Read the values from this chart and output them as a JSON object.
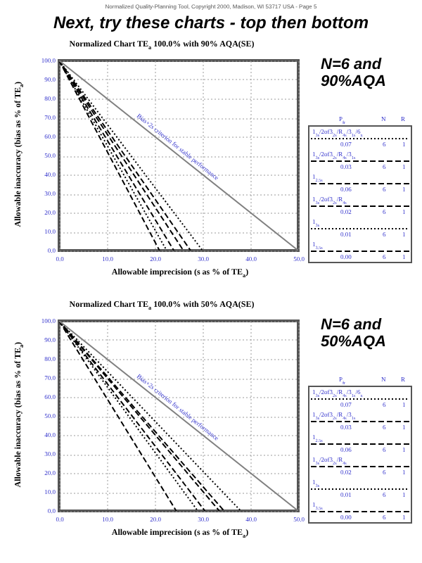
{
  "chart_data": [
    {
      "type": "line",
      "title": "Next, try these charts - top then bottom",
      "subtitle": "Normalized Chart TE$_{a}$ 100.0% with 90% AQA(SE)",
      "xlabel": "Allowable imprecision (s as % of TE$_{a}$)",
      "ylabel": "Allowable inaccuracy (bias as % of TE$_{a}$)",
      "xlim": [
        0,
        50
      ],
      "ylim": [
        0,
        100
      ],
      "xticks": [
        {
          "value": 0,
          "label": "0.0"
        },
        {
          "value": 10,
          "label": "10.0"
        },
        {
          "value": 20,
          "label": "20.0"
        },
        {
          "value": 30,
          "label": "30.0"
        },
        {
          "value": 40,
          "label": "40.0"
        },
        {
          "value": 50,
          "label": "50.0"
        }
      ],
      "yticks": [
        {
          "value": 0,
          "label": "0.0"
        },
        {
          "value": 10,
          "label": "10.0"
        },
        {
          "value": 20,
          "label": "20.0"
        },
        {
          "value": 30,
          "label": "30.0"
        },
        {
          "value": 40,
          "label": "40.0"
        },
        {
          "value": 50,
          "label": "50.0"
        },
        {
          "value": 60,
          "label": "60.0"
        },
        {
          "value": 70,
          "label": "70.0"
        },
        {
          "value": 80,
          "label": "80.0"
        },
        {
          "value": 90,
          "label": "90.0"
        },
        {
          "value": 100,
          "label": "100.0"
        }
      ],
      "grid": true,
      "legend": "right",
      "series": [
        {
          "name": "1$_{3s}$/2of3$_{2s}$/R$_{4s}$/3$_{1s}$/6$_{x}$",
          "color": "#000000",
          "x": [
            0,
            30
          ],
          "values": [
            100,
            0
          ],
          "line_style": "dotted"
        },
        {
          "name": "1$_{3s}$/2of3$_{2s}$/R$_{4s}$/3$_{1s}$",
          "color": "#000000",
          "x": [
            0,
            27.5
          ],
          "values": [
            100,
            0
          ],
          "line_style": "dashed"
        },
        {
          "name": "1$_{2.5s}$",
          "color": "#000000",
          "x": [
            0,
            26
          ],
          "values": [
            100,
            0
          ],
          "line_style": "dashed"
        },
        {
          "name": "1$_{3s}$/2of3$_{2s}$/R$_{4s}$",
          "color": "#000000",
          "x": [
            0,
            24
          ],
          "values": [
            100,
            0
          ],
          "line_style": "dashed"
        },
        {
          "name": "1$_{3s}$",
          "color": "#000000",
          "x": [
            0,
            22.5
          ],
          "values": [
            100,
            0
          ],
          "line_style": "dotted"
        },
        {
          "name": "1$_{3.5s}$",
          "color": "#000000",
          "x": [
            0,
            21
          ],
          "values": [
            100,
            0
          ],
          "line_style": "dashed"
        },
        {
          "color": "#808080",
          "x": [
            0,
            50
          ],
          "values": [
            100,
            0
          ],
          "line_style": "solid"
        }
      ],
      "annotations": [
        "Normalized Quality-Planning Tool, Copyright 2000, Madison, WI 53717 USA - Page 5",
        "N=6 and 90%AQA",
        "P$_{fr}$",
        "N",
        "R",
        "0.07",
        "6",
        "1",
        "0.03",
        "6",
        "1",
        "0.06",
        "6",
        "1",
        "0.02",
        "6",
        "1",
        "0.01",
        "6",
        "1",
        "0.00",
        "6",
        "1",
        {
          "text": "Bias+2s criterion for stable performance",
          "x": 24,
          "y": 52
        }
      ]
    },
    {
      "type": "line",
      "title": "Normalized Chart TE$_{a}$ 100.0% with 50% AQA(SE)",
      "xlabel": "Allowable imprecision (s as % of TE$_{a}$)",
      "ylabel": "Allowable inaccuracy (bias as % of TE$_{a}$)",
      "xlim": [
        0,
        50
      ],
      "ylim": [
        0,
        100
      ],
      "xticks": [
        {
          "value": 0,
          "label": "0.0"
        },
        {
          "value": 10,
          "label": "10.0"
        },
        {
          "value": 20,
          "label": "20.0"
        },
        {
          "value": 30,
          "label": "30.0"
        },
        {
          "value": 40,
          "label": "40.0"
        },
        {
          "value": 50,
          "label": "50.0"
        }
      ],
      "yticks": [
        {
          "value": 0,
          "label": "0.0"
        },
        {
          "value": 10,
          "label": "10.0"
        },
        {
          "value": 20,
          "label": "20.0"
        },
        {
          "value": 30,
          "label": "30.0"
        },
        {
          "value": 40,
          "label": "40.0"
        },
        {
          "value": 50,
          "label": "50.0"
        },
        {
          "value": 60,
          "label": "60.0"
        },
        {
          "value": 70,
          "label": "70.0"
        },
        {
          "value": 80,
          "label": "80.0"
        },
        {
          "value": 90,
          "label": "90.0"
        },
        {
          "value": 100,
          "label": "100.0"
        }
      ],
      "grid": true,
      "legend": "right",
      "series": [
        {
          "name": "1$_{3s}$/2of3$_{2s}$/R$_{4s}$/3$_{1s}$/6$_{x}$",
          "color": "#000000",
          "x": [
            0,
            38
          ],
          "values": [
            100,
            0
          ],
          "line_style": "dotted"
        },
        {
          "name": "1$_{3s}$/2of3$_{2s}$/R$_{4s}$/3$_{1s}$",
          "color": "#000000",
          "x": [
            0,
            34.5
          ],
          "values": [
            100,
            0
          ],
          "line_style": "dashed"
        },
        {
          "name": "1$_{2.5s}$",
          "color": "#000000",
          "x": [
            0,
            33.5
          ],
          "values": [
            100,
            0
          ],
          "line_style": "dashed"
        },
        {
          "name": "1$_{3s}$/2of3$_{2s}$/R$_{4s}$",
          "color": "#000000",
          "x": [
            0,
            30.5
          ],
          "values": [
            100,
            0
          ],
          "line_style": "dashed"
        },
        {
          "name": "1$_{3s}$",
          "color": "#000000",
          "x": [
            0,
            29
          ],
          "values": [
            100,
            0
          ],
          "line_style": "dotted"
        },
        {
          "name": "1$_{3.5s}$",
          "color": "#000000",
          "x": [
            0,
            24.5
          ],
          "values": [
            100,
            0
          ],
          "line_style": "dashed"
        },
        {
          "color": "#808080",
          "x": [
            0,
            50
          ],
          "values": [
            100,
            0
          ],
          "line_style": "solid"
        }
      ],
      "annotations": [
        "N=6 and 50%AQA",
        "P$_{fr}$",
        "N",
        "R",
        "0.07",
        "6",
        "1",
        "0.03",
        "6",
        "1",
        "0.06",
        "6",
        "1",
        "0.02",
        "6",
        "1",
        "0.01",
        "6",
        "1",
        "0.00",
        "6",
        "1",
        {
          "text": "Bias+2s criterion for stable performance",
          "x": 24,
          "y": 52
        }
      ]
    }
  ]
}
